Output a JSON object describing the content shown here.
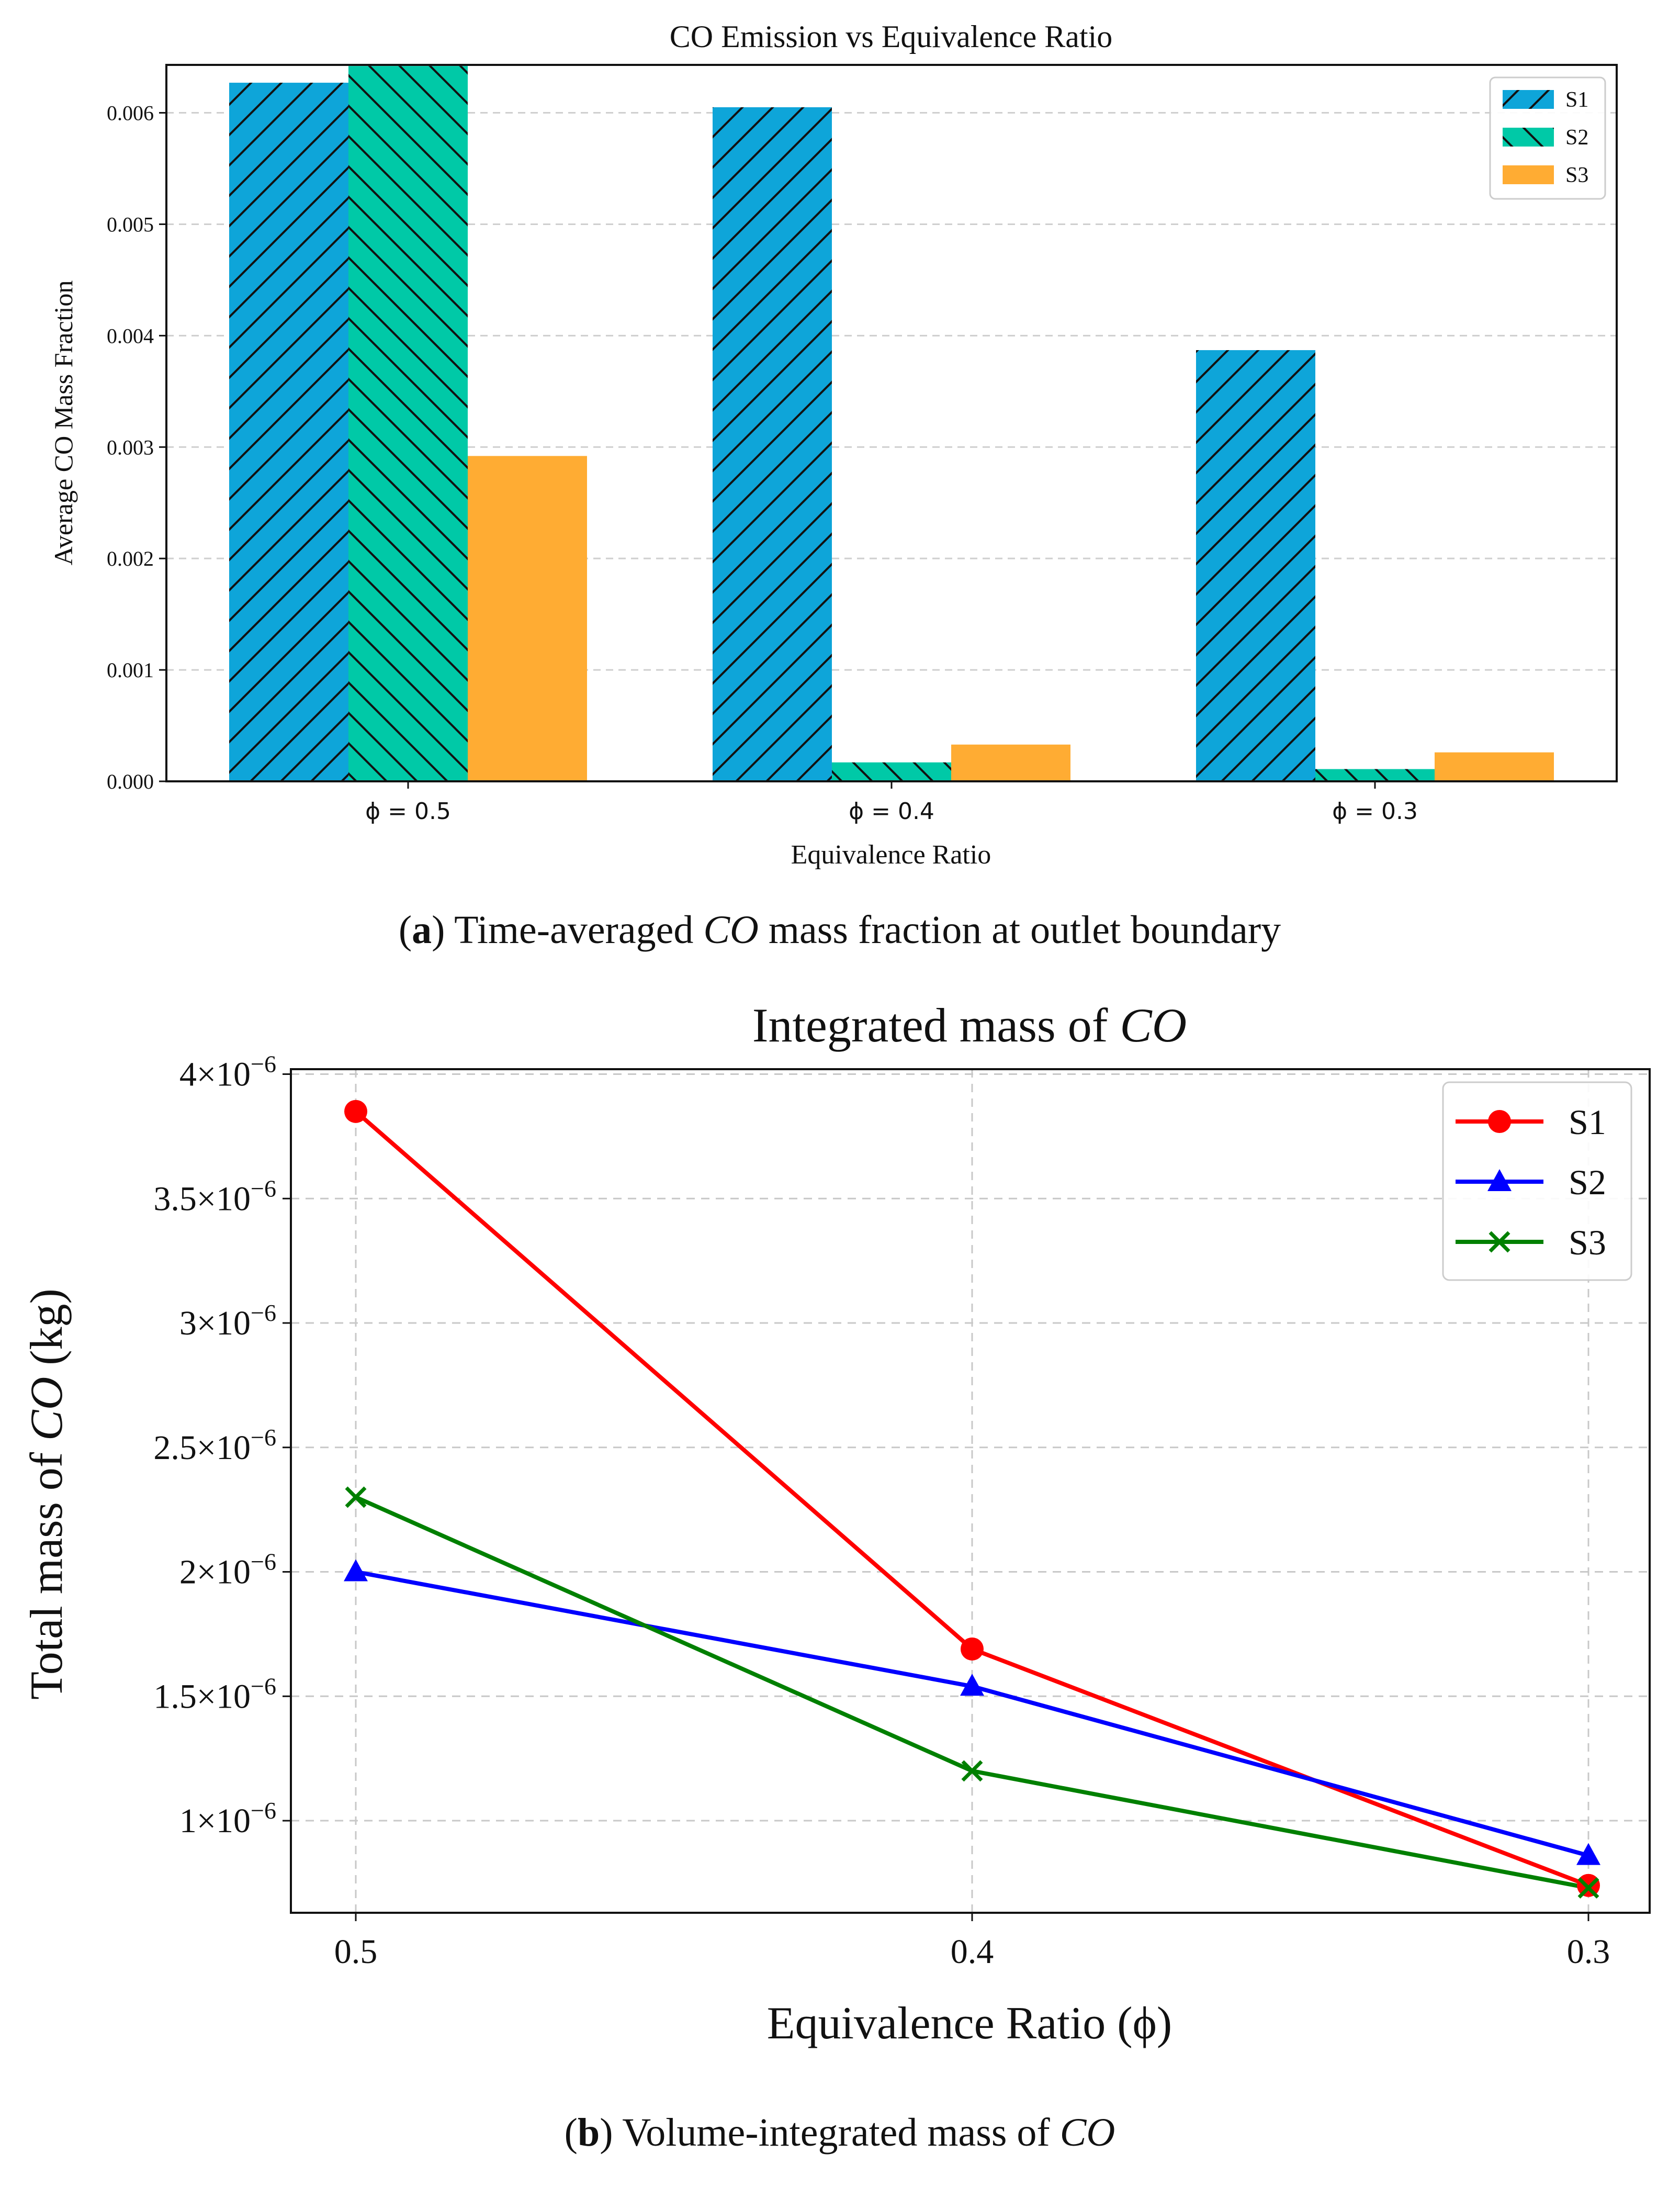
{
  "chart_data": [
    {
      "type": "bar",
      "title": "CO Emission vs Equivalence Ratio",
      "xlabel": "Equivalence Ratio",
      "ylabel": "Average CO Mass Fraction",
      "categories": [
        "ϕ = 0.5",
        "ϕ = 0.4",
        "ϕ = 0.3"
      ],
      "ylim": [
        0,
        0.00643
      ],
      "yticks": [
        0,
        0.001,
        0.002,
        0.003,
        0.004,
        0.005,
        0.006
      ],
      "ytick_labels": [
        "0.000",
        "0.001",
        "0.002",
        "0.003",
        "0.004",
        "0.005",
        "0.006"
      ],
      "grid": "horizontal dashed",
      "legend_position": "top-right",
      "series": [
        {
          "name": "S1",
          "color": "#0ea5d9",
          "hatch": "/",
          "values": [
            0.00627,
            0.00605,
            0.00387
          ]
        },
        {
          "name": "S2",
          "color": "#00c9a7",
          "hatch": "\\",
          "values": [
            0.00642,
            0.00017,
            0.00011
          ]
        },
        {
          "name": "S3",
          "color": "#ffac33",
          "hatch": "",
          "values": [
            0.00292,
            0.00033,
            0.00026
          ]
        }
      ],
      "caption": {
        "letter": "a",
        "before": "Time-averaged ",
        "emph": "CO",
        "after": " mass fraction at outlet boundary"
      }
    },
    {
      "type": "line",
      "title_prefix": "Integrated mass of ",
      "title_emph": "CO",
      "xlabel": "Equivalence Ratio (ϕ)",
      "ylabel_prefix": "Total mass of ",
      "ylabel_emph": "CO",
      "ylabel_suffix": " (kg)",
      "x_categories": [
        "0.5",
        "0.4",
        "0.3"
      ],
      "ylim": [
        6.3e-07,
        4.02e-06
      ],
      "yticks": [
        {
          "value": 1e-06,
          "mantissa": "1×10",
          "exponent": "−6"
        },
        {
          "value": 1.5e-06,
          "mantissa": "1.5×10",
          "exponent": "−6"
        },
        {
          "value": 2e-06,
          "mantissa": "2×10",
          "exponent": "−6"
        },
        {
          "value": 2.5e-06,
          "mantissa": "2.5×10",
          "exponent": "−6"
        },
        {
          "value": 3e-06,
          "mantissa": "3×10",
          "exponent": "−6"
        },
        {
          "value": 3.5e-06,
          "mantissa": "3.5×10",
          "exponent": "−6"
        },
        {
          "value": 4e-06,
          "mantissa": "4×10",
          "exponent": "−6"
        }
      ],
      "grid": "dashed both",
      "legend_position": "top-right",
      "series": [
        {
          "name": "S1",
          "color": "#ff0000",
          "marker": "circle",
          "values": [
            3.85e-06,
            1.69e-06,
            7.4e-07
          ]
        },
        {
          "name": "S2",
          "color": "#0000ff",
          "marker": "triangle",
          "values": [
            2e-06,
            1.54e-06,
            8.6e-07
          ]
        },
        {
          "name": "S3",
          "color": "#008000",
          "marker": "x",
          "values": [
            2.3e-06,
            1.2e-06,
            7.3e-07
          ]
        }
      ],
      "caption": {
        "letter": "b",
        "before": "Volume-integrated mass of ",
        "emph": "CO",
        "after": ""
      }
    }
  ]
}
